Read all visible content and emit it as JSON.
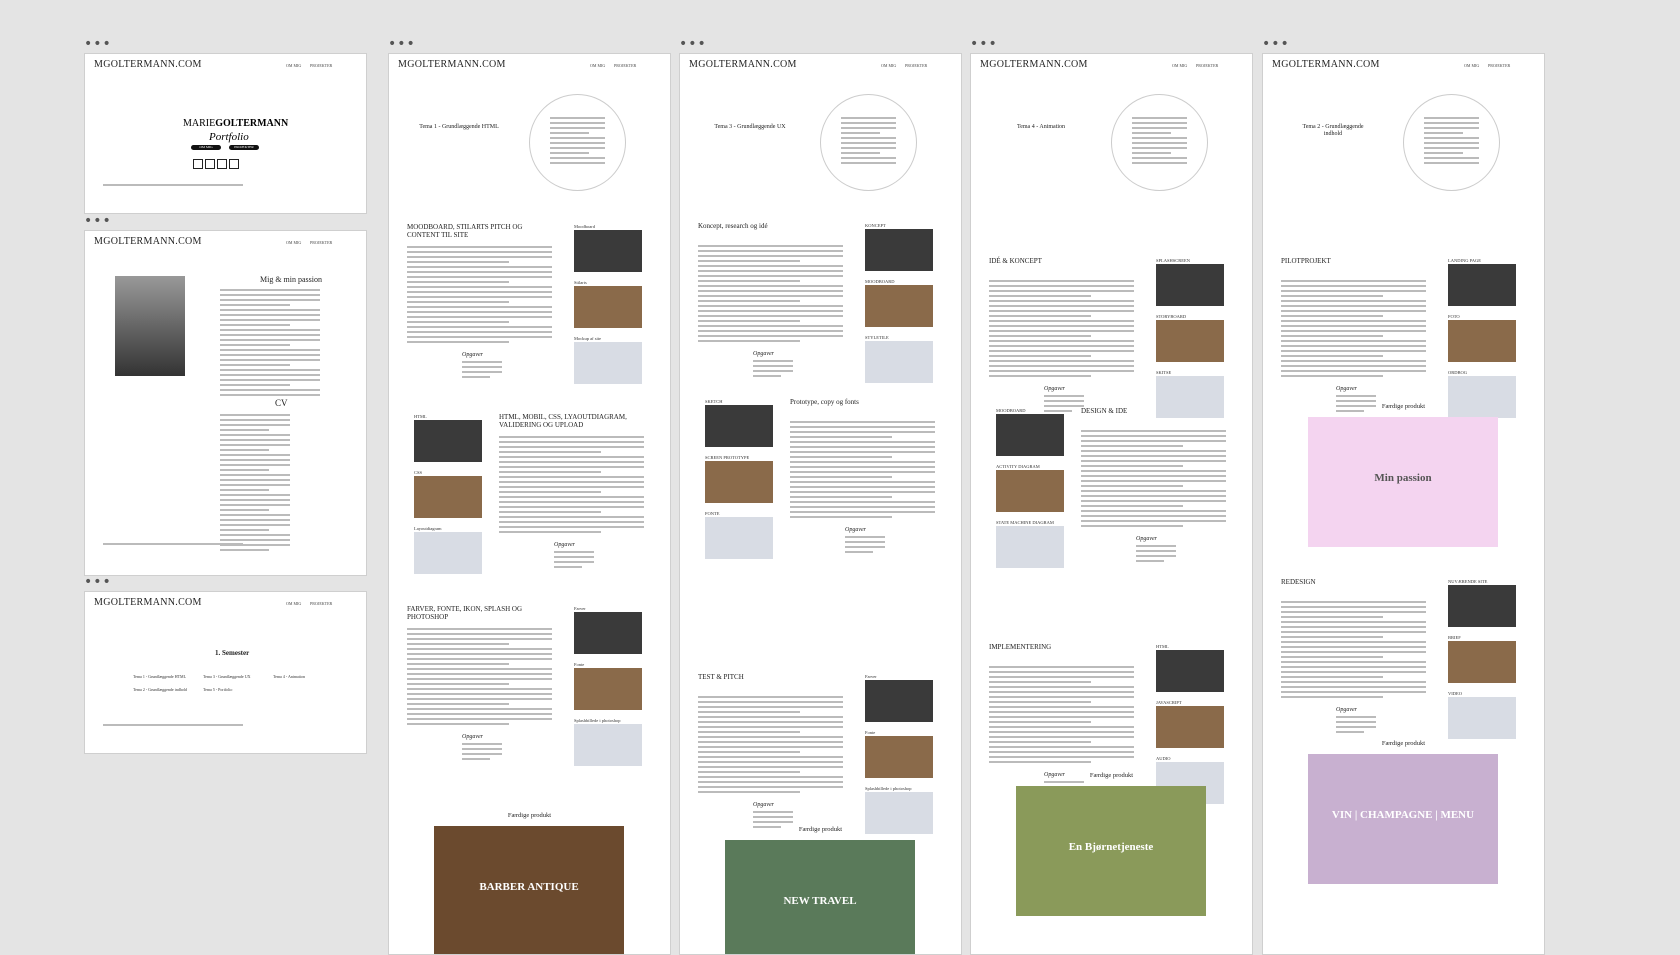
{
  "home": {
    "logo": "MGOLTERMANN.COM",
    "nav": [
      "OM MIG",
      "PROJEKTER"
    ],
    "name_first": "MARIE",
    "name_last": "GOLTERMANN",
    "subtitle": "Portfolio",
    "buttons": [
      "OM MIG",
      "PROJEKTER"
    ]
  },
  "about": {
    "logo": "MGOLTERMANN.COM",
    "nav": [
      "OM MIG",
      "PROJEKTER"
    ],
    "heading": "Mig & min passion",
    "cv_heading": "CV"
  },
  "semester": {
    "logo": "MGOLTERMANN.COM",
    "nav": [
      "OM MIG",
      "PROJEKTER"
    ],
    "heading": "1. Semester",
    "links": [
      "Tema 1 - Grundlæggende HTML",
      "Tema 3 - Grundlæggende UX",
      "Tema 4 - Animation",
      "Tema 2 - Grundlæggende indhold",
      "Tema 5 - Portfolio"
    ]
  },
  "projects": [
    {
      "logo": "MGOLTERMANN.COM",
      "nav": [
        "OM MIG",
        "PROJEKTER"
      ],
      "title": "Tema 1 - Grundlæggende HTML",
      "sections": [
        {
          "heading": "MOODBOARD, STILARTS PITCH OG CONTENT TIL SITE",
          "tasks": "Opgaver",
          "labels": [
            "Moodboard",
            "Stilarts",
            "Mockup af site"
          ]
        },
        {
          "heading": "HTML, MOBIL, CSS, LYAOUTDIAGRAM, VALIDERING OG UPLOAD",
          "tasks": "Opgaver",
          "labels": [
            "HTML",
            "CSS",
            "Layoutdiagram"
          ]
        },
        {
          "heading": "FARVER, FONTE, IKON, SPLASH OG PHOTOSHOP",
          "tasks": "Opgaver",
          "labels": [
            "Farver",
            "Fonte",
            "Splashbillede i photoshop"
          ]
        },
        {
          "heading": "Færdige produkt",
          "image_text": "BARBER ANTIQUE"
        }
      ]
    },
    {
      "logo": "MGOLTERMANN.COM",
      "nav": [
        "OM MIG",
        "PROJEKTER"
      ],
      "title": "Tema 3 - Grundlæggende UX",
      "sections": [
        {
          "heading": "Koncept, research og idé",
          "tasks": "Opgaver",
          "labels": [
            "KONCEPT",
            "MOODBOARD",
            "STYLETILE"
          ]
        },
        {
          "heading": "Prototype, copy og fonts",
          "tasks": "Opgaver",
          "labels": [
            "SKETCH",
            "SCREEN PROTOTYPE",
            "FONTE"
          ]
        },
        {
          "heading": "TEST & PITCH",
          "tasks": "Opgaver",
          "labels": [
            "Farver",
            "Fonte",
            "Splashbillede i photoshop"
          ]
        },
        {
          "heading": "Færdige produkt",
          "image_text": "NEW TRAVEL"
        }
      ]
    },
    {
      "logo": "MGOLTERMANN.COM",
      "nav": [
        "OM MIG",
        "PROJEKTER"
      ],
      "title": "Tema 4 - Animation",
      "sections": [
        {
          "heading": "IDÉ & KONCEPT",
          "tasks": "Opgaver",
          "labels": [
            "SPLASHSCREEN",
            "STORYBOARD",
            "SKITSE"
          ]
        },
        {
          "heading": "DESIGN & IDE",
          "tasks": "Opgaver",
          "labels": [
            "MOODBOARD",
            "ACTIVITY DIAGRAM",
            "STATE MACHINE DIAGRAM"
          ]
        },
        {
          "heading": "IMPLEMENTERING",
          "tasks": "Opgaver",
          "labels": [
            "HTML",
            "JAVASCRIPT",
            "AUDIO"
          ]
        },
        {
          "heading": "Færdige produkt",
          "image_text": "En Bjørnetjeneste"
        }
      ]
    },
    {
      "logo": "MGOLTERMANN.COM",
      "nav": [
        "OM MIG",
        "PROJEKTER"
      ],
      "title": "Tema 2 - Grundlæggende indhold",
      "sections": [
        {
          "heading": "PILOTPROJEKT",
          "tasks": "Opgaver",
          "labels": [
            "LANDING PAGE",
            "FOTO",
            "ORDBOG"
          ]
        },
        {
          "heading": "Færdige produkt",
          "image_text": "Min passion"
        },
        {
          "heading": "REDESIGN",
          "tasks": "Opgaver",
          "labels": [
            "NUVÆRENDE SITE",
            "BRIEF",
            "VIDEO"
          ]
        },
        {
          "heading": "Færdige produkt",
          "image_text": "VIN | CHAMPAGNE | MENU"
        }
      ]
    }
  ]
}
